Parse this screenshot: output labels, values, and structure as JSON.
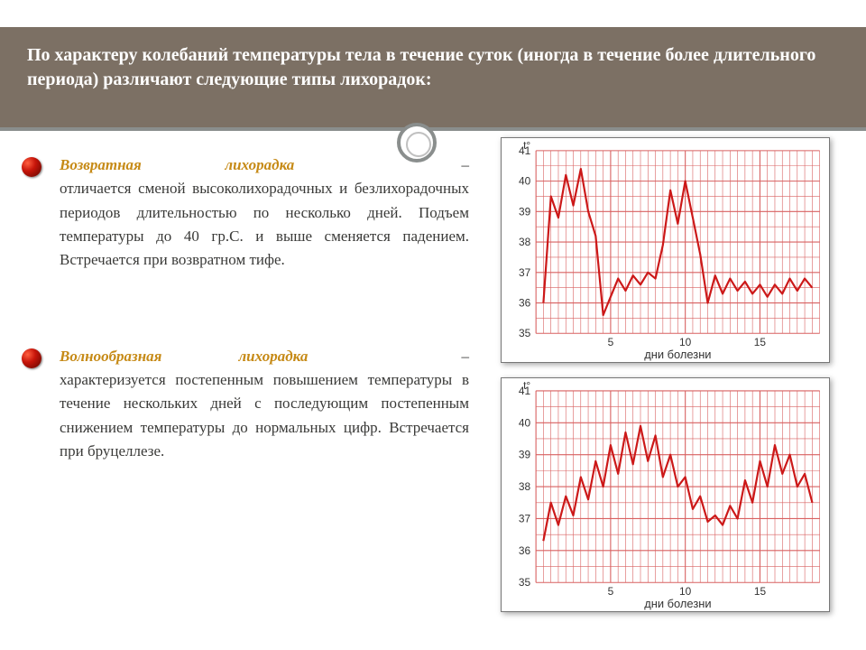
{
  "header": {
    "text": "По характеру колебаний температуры тела в течение суток (иногда в течение более длительного периода) различают следующие типы лихорадок:"
  },
  "blocks": [
    {
      "title": "Возвратная лихорадка",
      "body": "– отличается сменой высоколихорадочных и безлихорадочных периодов длительностью по несколько дней. Подъем температуры до 40 гр.С. и выше сменяется падением. Встречается при возвратном тифе."
    },
    {
      "title": "Волнообразная лихорадка",
      "body": "– характеризуется постепенным повышением температуры в течение нескольких дней с последующим постепенным снижением температуры до нормальных цифр. Встречается при бруцеллезе."
    }
  ],
  "chart1": {
    "type": "line",
    "ylabel": "t°",
    "ylim": [
      35,
      41
    ],
    "ytick_step": 1,
    "xlabel": "дни болезни",
    "xticks": [
      5,
      10,
      15
    ],
    "xmax": 19,
    "background_color": "#ffffff",
    "grid_color": "#d86060",
    "curve_color": "#cc1818",
    "values": [
      36.0,
      39.5,
      38.8,
      40.2,
      39.2,
      40.4,
      39.0,
      38.2,
      35.6,
      36.2,
      36.8,
      36.4,
      36.9,
      36.6,
      37.0,
      36.8,
      37.9,
      39.7,
      38.6,
      40.0,
      38.8,
      37.6,
      36.0,
      36.9,
      36.3,
      36.8,
      36.4,
      36.7,
      36.3,
      36.6,
      36.2,
      36.6,
      36.3,
      36.8,
      36.4,
      36.8,
      36.5
    ]
  },
  "chart2": {
    "type": "line",
    "ylabel": "t°",
    "ylim": [
      35,
      41
    ],
    "ytick_step": 1,
    "xlabel": "дни болезни",
    "xticks": [
      5,
      10,
      15
    ],
    "xmax": 19,
    "background_color": "#ffffff",
    "grid_color": "#d86060",
    "curve_color": "#cc1818",
    "values": [
      36.3,
      37.5,
      36.8,
      37.7,
      37.1,
      38.3,
      37.6,
      38.8,
      38.0,
      39.3,
      38.4,
      39.7,
      38.7,
      39.9,
      38.8,
      39.6,
      38.3,
      39.0,
      38.0,
      38.3,
      37.3,
      37.7,
      36.9,
      37.1,
      36.8,
      37.4,
      37.0,
      38.2,
      37.5,
      38.8,
      38.0,
      39.3,
      38.4,
      39.0,
      38.0,
      38.4,
      37.5
    ]
  }
}
